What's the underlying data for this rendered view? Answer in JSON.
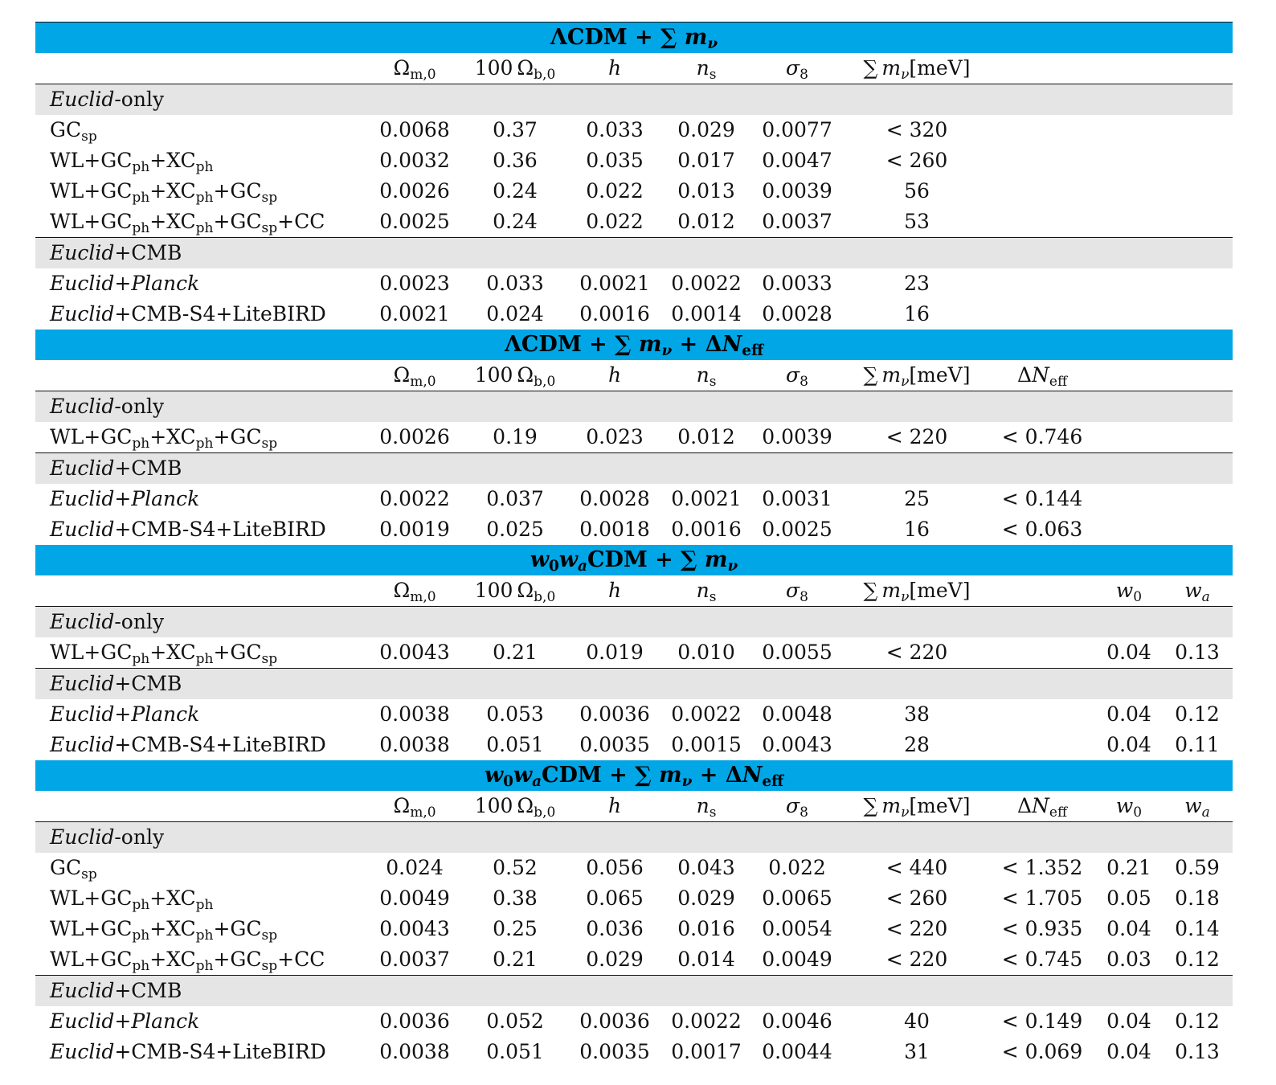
{
  "columns": [
    "Ωm,0",
    "100 Ωb,0",
    "h",
    "ns",
    "σ8",
    "∑ mν[meV]",
    "ΔNeff",
    "w0",
    "wa"
  ],
  "sections": [
    {
      "title": "ΛCDM + ∑ mν",
      "cols": [
        0,
        1,
        2,
        3,
        4,
        5
      ],
      "groups": [
        {
          "label": "Euclid-only",
          "rows": [
            {
              "label": "GCsp",
              "values": [
                "0.0068",
                "0.37",
                "0.033",
                "0.029",
                "0.0077",
                "< 320"
              ]
            },
            {
              "label": "WL+GCph+XCph",
              "values": [
                "0.0032",
                "0.36",
                "0.035",
                "0.017",
                "0.0047",
                "< 260"
              ]
            },
            {
              "label": "WL+GCph+XCph+GCsp",
              "values": [
                "0.0026",
                "0.24",
                "0.022",
                "0.013",
                "0.0039",
                "56"
              ]
            },
            {
              "label": "WL+GCph+XCph+GCsp+CC",
              "values": [
                "0.0025",
                "0.24",
                "0.022",
                "0.012",
                "0.0037",
                "53"
              ]
            }
          ]
        },
        {
          "label": "Euclid+CMB",
          "rows": [
            {
              "label": "Euclid+Planck",
              "values": [
                "0.0023",
                "0.033",
                "0.0021",
                "0.0022",
                "0.0033",
                "23"
              ]
            },
            {
              "label": "Euclid+CMB-S4+LiteBIRD",
              "values": [
                "0.0021",
                "0.024",
                "0.0016",
                "0.0014",
                "0.0028",
                "16"
              ]
            }
          ]
        }
      ]
    },
    {
      "title": "ΛCDM + ∑ mν + ΔNeff",
      "cols": [
        0,
        1,
        2,
        3,
        4,
        5,
        6
      ],
      "groups": [
        {
          "label": "Euclid-only",
          "rows": [
            {
              "label": "WL+GCph+XCph+GCsp",
              "values": [
                "0.0026",
                "0.19",
                "0.023",
                "0.012",
                "0.0039",
                "< 220",
                "< 0.746"
              ]
            }
          ]
        },
        {
          "label": "Euclid+CMB",
          "rows": [
            {
              "label": "Euclid+Planck",
              "values": [
                "0.0022",
                "0.037",
                "0.0028",
                "0.0021",
                "0.0031",
                "25",
                "< 0.144"
              ]
            },
            {
              "label": "Euclid+CMB-S4+LiteBIRD",
              "values": [
                "0.0019",
                "0.025",
                "0.0018",
                "0.0016",
                "0.0025",
                "16",
                "< 0.063"
              ]
            }
          ]
        }
      ]
    },
    {
      "title": "w0waCDM + ∑ mν",
      "cols": [
        0,
        1,
        2,
        3,
        4,
        5,
        7,
        8
      ],
      "groups": [
        {
          "label": "Euclid-only",
          "rows": [
            {
              "label": "WL+GCph+XCph+GCsp",
              "values": [
                "0.0043",
                "0.21",
                "0.019",
                "0.010",
                "0.0055",
                "< 220",
                "0.04",
                "0.13"
              ]
            }
          ]
        },
        {
          "label": "Euclid+CMB",
          "rows": [
            {
              "label": "Euclid+Planck",
              "values": [
                "0.0038",
                "0.053",
                "0.0036",
                "0.0022",
                "0.0048",
                "38",
                "0.04",
                "0.12"
              ]
            },
            {
              "label": "Euclid+CMB-S4+LiteBIRD",
              "values": [
                "0.0038",
                "0.051",
                "0.0035",
                "0.0015",
                "0.0043",
                "28",
                "0.04",
                "0.11"
              ]
            }
          ]
        }
      ]
    },
    {
      "title": "w0waCDM + ∑ mν + ΔNeff",
      "cols": [
        0,
        1,
        2,
        3,
        4,
        5,
        6,
        7,
        8
      ],
      "groups": [
        {
          "label": "Euclid-only",
          "rows": [
            {
              "label": "GCsp",
              "values": [
                "0.024",
                "0.52",
                "0.056",
                "0.043",
                "0.022",
                "< 440",
                "< 1.352",
                "0.21",
                "0.59"
              ]
            },
            {
              "label": "WL+GCph+XCph",
              "values": [
                "0.0049",
                "0.38",
                "0.065",
                "0.029",
                "0.0065",
                "< 260",
                "< 1.705",
                "0.05",
                "0.18"
              ]
            },
            {
              "label": "WL+GCph+XCph+GCsp",
              "values": [
                "0.0043",
                "0.25",
                "0.036",
                "0.016",
                "0.0054",
                "< 220",
                "< 0.935",
                "0.04",
                "0.14"
              ]
            },
            {
              "label": "WL+GCph+XCph+GCsp+CC",
              "values": [
                "0.0037",
                "0.21",
                "0.029",
                "0.014",
                "0.0049",
                "< 220",
                "< 0.745",
                "0.03",
                "0.12"
              ]
            }
          ]
        },
        {
          "label": "Euclid+CMB",
          "rows": [
            {
              "label": "Euclid+Planck",
              "values": [
                "0.0036",
                "0.052",
                "0.0036",
                "0.0022",
                "0.0046",
                "40",
                "< 0.149",
                "0.04",
                "0.12"
              ]
            },
            {
              "label": "Euclid+CMB-S4+LiteBIRD",
              "values": [
                "0.0038",
                "0.051",
                "0.0035",
                "0.0017",
                "0.0044",
                "31",
                "< 0.069",
                "0.04",
                "0.13"
              ]
            }
          ]
        }
      ]
    }
  ],
  "colors": {
    "band": "#00a6e6",
    "subheader": "#e5e5e5"
  }
}
